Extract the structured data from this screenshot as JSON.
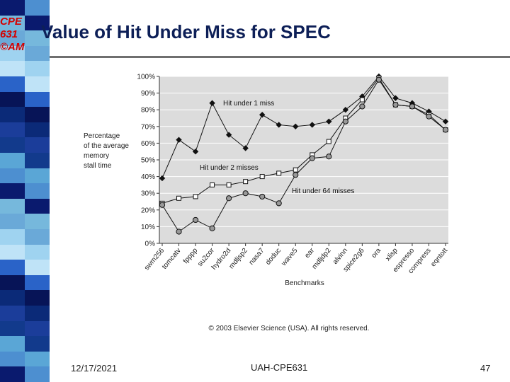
{
  "slide": {
    "logo": [
      "CPE",
      "631",
      "©AM"
    ],
    "title": "Value of Hit Under Miss for SPEC",
    "footer_date": "12/17/2021",
    "footer_center": "UAH-CPE631",
    "page_number": "47"
  },
  "colors": {
    "strip": [
      "#0a1a6e",
      "#2a63c8",
      "#5aa6d6",
      "#9fd3f0",
      "#1b3d9a",
      "#76b8dc",
      "#071457",
      "#4d8fd0",
      "#bfe3f7",
      "#123a8c",
      "#6aa9d8",
      "#0b2a78"
    ],
    "logo": "#d40000",
    "title": "#0d1f57",
    "plot_bg": "#dcdcdc"
  },
  "chart_data": {
    "type": "line",
    "ylabel": [
      "Percentage",
      "of the average",
      "memory",
      "stall time"
    ],
    "xlabel": "Benchmarks",
    "ylim": [
      0,
      100
    ],
    "yticks": [
      "0%",
      "10%",
      "20%",
      "30%",
      "40%",
      "50%",
      "60%",
      "70%",
      "80%",
      "90%",
      "100%"
    ],
    "categories": [
      "swm256",
      "tomcatv",
      "fpppp",
      "su2cor",
      "hydro2d",
      "mdljsp2",
      "nasa7",
      "doduc",
      "wave5",
      "ear",
      "mdljdp2",
      "alvinn",
      "spice2g6",
      "ora",
      "xlisp",
      "espresso",
      "compress",
      "eqntott"
    ],
    "series": [
      {
        "name": "Hit under 1 miss",
        "marker": "diamond",
        "values": [
          39,
          62,
          55,
          84,
          65,
          57,
          77,
          71,
          70,
          71,
          73,
          80,
          88,
          100,
          87,
          84,
          79,
          73
        ]
      },
      {
        "name": "Hit under 2 misses",
        "marker": "square",
        "values": [
          24,
          27,
          28,
          35,
          35,
          37,
          40,
          42,
          44,
          53,
          61,
          75,
          86,
          99,
          83,
          82,
          77,
          68
        ]
      },
      {
        "name": "Hit under 64 misses",
        "marker": "circle",
        "values": [
          23,
          7,
          14,
          9,
          27,
          30,
          28,
          24,
          41,
          51,
          52,
          73,
          82,
          98,
          83,
          82,
          76,
          68
        ]
      }
    ],
    "annotations": [
      "Hit under 1 miss",
      "Hit under 2 misses",
      "Hit under 64 misses"
    ],
    "copyright": "© 2003 Elsevier Science (USA). All rights reserved."
  }
}
